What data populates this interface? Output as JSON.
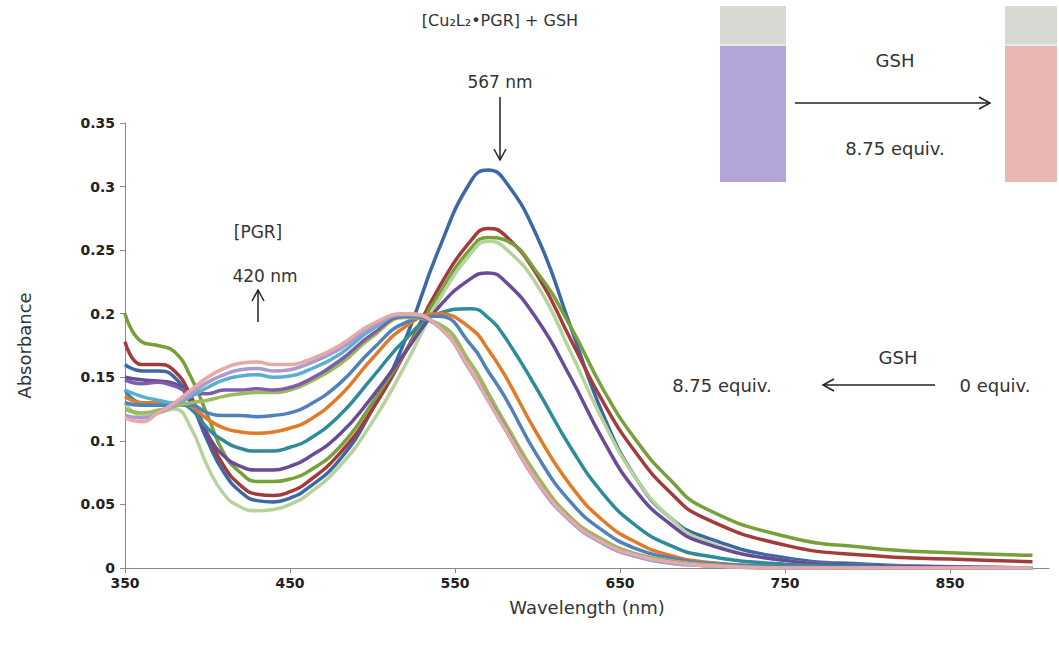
{
  "chart_data": {
    "type": "line",
    "x_label": "Wavelength (nm)",
    "y_label": "Absorbance",
    "xlim": [
      350,
      910
    ],
    "xticks": [
      350,
      450,
      550,
      650,
      750,
      850
    ],
    "ylim": [
      0,
      0.35
    ],
    "yticks": [
      0,
      0.05,
      0.1,
      0.15,
      0.2,
      0.25,
      0.3,
      0.35
    ],
    "grid": false,
    "x": [
      350,
      360,
      370,
      380,
      390,
      400,
      410,
      420,
      430,
      440,
      450,
      460,
      480,
      500,
      520,
      540,
      560,
      570,
      580,
      600,
      620,
      640,
      660,
      680,
      700,
      750,
      800,
      850,
      900
    ],
    "series": [
      {
        "color": "#3b68a6",
        "values": [
          0.16,
          0.155,
          0.155,
          0.15,
          0.13,
          0.1,
          0.075,
          0.06,
          0.053,
          0.052,
          0.055,
          0.062,
          0.085,
          0.125,
          0.18,
          0.25,
          0.305,
          0.313,
          0.305,
          0.26,
          0.19,
          0.12,
          0.07,
          0.04,
          0.025,
          0.008,
          0.003,
          0.001,
          0
        ]
      },
      {
        "color": "#a33b3b",
        "values": [
          0.178,
          0.16,
          0.16,
          0.155,
          0.135,
          0.105,
          0.08,
          0.065,
          0.058,
          0.057,
          0.06,
          0.067,
          0.09,
          0.125,
          0.17,
          0.22,
          0.258,
          0.267,
          0.262,
          0.23,
          0.18,
          0.13,
          0.09,
          0.06,
          0.04,
          0.018,
          0.01,
          0.007,
          0.005
        ]
      },
      {
        "color": "#77a03a",
        "values": [
          0.2,
          0.178,
          0.175,
          0.17,
          0.15,
          0.12,
          0.09,
          0.075,
          0.068,
          0.068,
          0.07,
          0.075,
          0.095,
          0.13,
          0.17,
          0.215,
          0.252,
          0.26,
          0.258,
          0.232,
          0.19,
          0.14,
          0.1,
          0.07,
          0.048,
          0.025,
          0.016,
          0.012,
          0.01
        ]
      },
      {
        "color": "#b7d39c",
        "values": [
          0.13,
          0.12,
          0.122,
          0.125,
          0.11,
          0.08,
          0.058,
          0.048,
          0.045,
          0.046,
          0.05,
          0.057,
          0.08,
          0.115,
          0.16,
          0.21,
          0.248,
          0.257,
          0.252,
          0.222,
          0.17,
          0.115,
          0.07,
          0.04,
          0.022,
          0.006,
          0.002,
          0.001,
          0
        ]
      },
      {
        "color": "#6a4b98",
        "values": [
          0.15,
          0.148,
          0.147,
          0.145,
          0.13,
          0.105,
          0.088,
          0.08,
          0.077,
          0.077,
          0.08,
          0.086,
          0.105,
          0.135,
          0.17,
          0.205,
          0.228,
          0.232,
          0.226,
          0.195,
          0.15,
          0.1,
          0.06,
          0.035,
          0.02,
          0.006,
          0.002,
          0.001,
          0
        ]
      },
      {
        "color": "#2e8b9a",
        "values": [
          0.14,
          0.13,
          0.13,
          0.13,
          0.125,
          0.11,
          0.1,
          0.094,
          0.092,
          0.092,
          0.095,
          0.1,
          0.12,
          0.15,
          0.18,
          0.2,
          0.204,
          0.197,
          0.182,
          0.14,
          0.095,
          0.058,
          0.033,
          0.018,
          0.01,
          0.003,
          0.001,
          0,
          0
        ]
      },
      {
        "color": "#e07b2a",
        "values": [
          0.135,
          0.13,
          0.13,
          0.13,
          0.127,
          0.117,
          0.11,
          0.107,
          0.106,
          0.107,
          0.11,
          0.115,
          0.135,
          0.165,
          0.19,
          0.2,
          0.188,
          0.172,
          0.152,
          0.105,
          0.065,
          0.037,
          0.02,
          0.01,
          0.005,
          0.001,
          0,
          0,
          0
        ]
      },
      {
        "color": "#4f81bd",
        "values": [
          0.13,
          0.128,
          0.128,
          0.128,
          0.128,
          0.122,
          0.12,
          0.12,
          0.119,
          0.12,
          0.122,
          0.127,
          0.145,
          0.172,
          0.193,
          0.198,
          0.175,
          0.155,
          0.135,
          0.088,
          0.052,
          0.029,
          0.015,
          0.008,
          0.004,
          0.001,
          0,
          0,
          0
        ]
      },
      {
        "color": "#9bbb59",
        "values": [
          0.125,
          0.122,
          0.124,
          0.127,
          0.13,
          0.132,
          0.135,
          0.137,
          0.138,
          0.138,
          0.14,
          0.145,
          0.16,
          0.182,
          0.197,
          0.192,
          0.16,
          0.138,
          0.115,
          0.072,
          0.04,
          0.022,
          0.011,
          0.006,
          0.003,
          0,
          0,
          0,
          0
        ]
      },
      {
        "color": "#7e5ea8",
        "values": [
          0.148,
          0.145,
          0.146,
          0.143,
          0.138,
          0.137,
          0.14,
          0.14,
          0.141,
          0.14,
          0.142,
          0.147,
          0.163,
          0.184,
          0.198,
          0.19,
          0.155,
          0.133,
          0.111,
          0.068,
          0.038,
          0.02,
          0.01,
          0.005,
          0.002,
          0,
          0,
          0,
          0
        ]
      },
      {
        "color": "#5aaed0",
        "values": [
          0.14,
          0.135,
          0.132,
          0.13,
          0.135,
          0.142,
          0.148,
          0.151,
          0.152,
          0.15,
          0.151,
          0.155,
          0.168,
          0.188,
          0.199,
          0.19,
          0.154,
          0.132,
          0.11,
          0.067,
          0.037,
          0.019,
          0.009,
          0.004,
          0.002,
          0,
          0,
          0,
          0
        ]
      },
      {
        "color": "#a99bd0",
        "values": [
          0.12,
          0.118,
          0.122,
          0.128,
          0.137,
          0.146,
          0.152,
          0.156,
          0.157,
          0.155,
          0.156,
          0.16,
          0.172,
          0.19,
          0.2,
          0.19,
          0.154,
          0.132,
          0.11,
          0.067,
          0.037,
          0.019,
          0.009,
          0.004,
          0.002,
          0,
          0,
          0,
          0
        ]
      },
      {
        "color": "#e6a9a6",
        "values": [
          0.118,
          0.115,
          0.122,
          0.13,
          0.14,
          0.15,
          0.157,
          0.161,
          0.162,
          0.16,
          0.16,
          0.163,
          0.175,
          0.192,
          0.2,
          0.19,
          0.155,
          0.132,
          0.11,
          0.068,
          0.038,
          0.02,
          0.01,
          0.005,
          0.002,
          0,
          0,
          0,
          0
        ]
      }
    ],
    "annotations": [
      {
        "text": "[Cu₂L₂•PGR] + GSH"
      },
      {
        "text": "567 nm"
      },
      {
        "text": "[PGR]"
      },
      {
        "text": "420 nm"
      },
      {
        "text": "GSH"
      },
      {
        "text": "8.75 equiv."
      },
      {
        "text": "0 equiv."
      },
      {
        "text": "GSH"
      },
      {
        "text": "8.75 equiv."
      }
    ]
  }
}
